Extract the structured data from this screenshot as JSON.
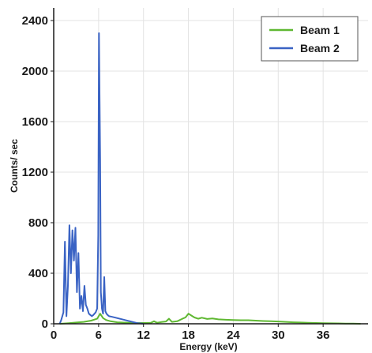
{
  "chart_data": {
    "type": "line",
    "xlabel": "Energy (keV)",
    "ylabel": "Counts/ sec",
    "xlim": [
      0,
      42
    ],
    "ylim": [
      0,
      2500
    ],
    "x_ticks": [
      "0",
      "6",
      "12",
      "18",
      "24",
      "30",
      "36"
    ],
    "x_tick_values": [
      0,
      6,
      12,
      18,
      24,
      30,
      36
    ],
    "y_ticks": [
      "0",
      "400",
      "800",
      "1200",
      "1600",
      "2000",
      "2400"
    ],
    "y_tick_values": [
      0,
      400,
      800,
      1200,
      1600,
      2000,
      2400
    ],
    "grid": true,
    "legend_position": "top-right",
    "series": [
      {
        "name": "Beam 1",
        "color": "#5fb832",
        "x": [
          0.8,
          2,
          3,
          4,
          5,
          5.8,
          6.2,
          6.6,
          7,
          7.6,
          8.5,
          10,
          11,
          12,
          13,
          13.4,
          13.8,
          14.5,
          15,
          15.4,
          15.8,
          16.5,
          17.2,
          17.6,
          18,
          18.4,
          18.8,
          19.3,
          19.8,
          20.5,
          21.2,
          22,
          23,
          24,
          25,
          26,
          27,
          28,
          29,
          30,
          31,
          32,
          33,
          34,
          35,
          36,
          37,
          38,
          39,
          40,
          41
        ],
        "y": [
          0,
          5,
          10,
          15,
          25,
          40,
          80,
          45,
          30,
          20,
          12,
          8,
          6,
          6,
          8,
          20,
          8,
          15,
          18,
          40,
          15,
          20,
          40,
          50,
          80,
          65,
          50,
          40,
          48,
          38,
          42,
          35,
          32,
          30,
          28,
          28,
          25,
          22,
          20,
          18,
          15,
          12,
          10,
          8,
          6,
          5,
          4,
          3,
          2,
          1,
          0
        ]
      },
      {
        "name": "Beam 2",
        "color": "#3a63c4",
        "x": [
          0.8,
          1.0,
          1.3,
          1.5,
          1.7,
          1.9,
          2.1,
          2.3,
          2.5,
          2.7,
          2.9,
          3.1,
          3.3,
          3.5,
          3.7,
          3.9,
          4.1,
          4.3,
          4.5,
          4.7,
          4.9,
          5.1,
          5.3,
          5.6,
          5.8,
          5.95,
          6.05,
          6.2,
          6.3,
          6.45,
          6.6,
          6.75,
          6.9,
          7.05,
          7.2,
          7.4,
          7.8,
          8.5,
          9.5,
          10.5,
          11.2,
          12
        ],
        "y": [
          0,
          30,
          90,
          650,
          60,
          300,
          780,
          400,
          740,
          500,
          760,
          250,
          560,
          120,
          220,
          100,
          300,
          150,
          120,
          80,
          70,
          60,
          70,
          90,
          120,
          700,
          2300,
          1300,
          250,
          120,
          80,
          370,
          100,
          80,
          70,
          60,
          55,
          45,
          30,
          15,
          5,
          0
        ]
      }
    ]
  }
}
